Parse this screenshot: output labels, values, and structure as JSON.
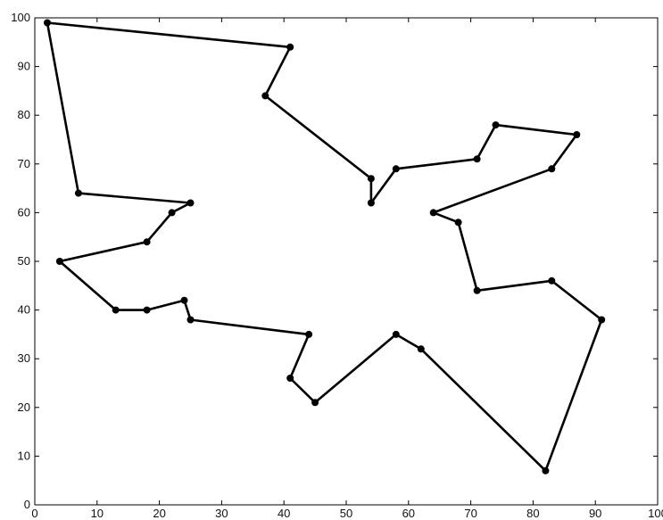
{
  "chart_data": {
    "type": "line",
    "title": "",
    "xlabel": "",
    "ylabel": "",
    "xlim": [
      0,
      100
    ],
    "ylim": [
      0,
      100
    ],
    "xticks": [
      "0",
      "10",
      "20",
      "30",
      "40",
      "50",
      "60",
      "70",
      "80",
      "90",
      "100"
    ],
    "yticks": [
      "0",
      "10",
      "20",
      "30",
      "40",
      "50",
      "60",
      "70",
      "80",
      "90",
      "100"
    ],
    "grid": false,
    "legend": "none",
    "line_color": "#000000",
    "marker_color": "#000000",
    "series": [
      {
        "closed": true,
        "points": [
          [
            2,
            99
          ],
          [
            41,
            94
          ],
          [
            37,
            84
          ],
          [
            54,
            67
          ],
          [
            54,
            62
          ],
          [
            58,
            69
          ],
          [
            71,
            71
          ],
          [
            74,
            78
          ],
          [
            87,
            76
          ],
          [
            83,
            69
          ],
          [
            64,
            60
          ],
          [
            68,
            58
          ],
          [
            71,
            44
          ],
          [
            83,
            46
          ],
          [
            91,
            38
          ],
          [
            82,
            7
          ],
          [
            62,
            32
          ],
          [
            58,
            35
          ],
          [
            45,
            21
          ],
          [
            41,
            26
          ],
          [
            44,
            35
          ],
          [
            25,
            38
          ],
          [
            24,
            42
          ],
          [
            18,
            40
          ],
          [
            13,
            40
          ],
          [
            4,
            50
          ],
          [
            18,
            54
          ],
          [
            22,
            60
          ],
          [
            25,
            62
          ],
          [
            7,
            64
          ]
        ]
      }
    ]
  }
}
